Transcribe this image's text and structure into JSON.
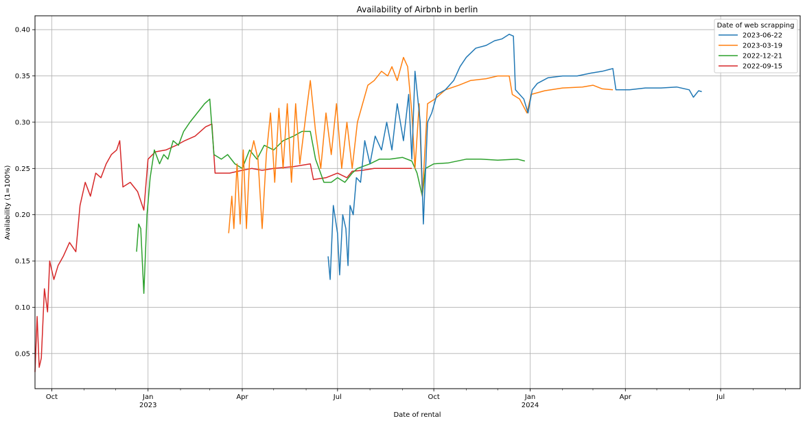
{
  "chart_data": {
    "type": "line",
    "title": "Availability of Airbnb in berlin",
    "xlabel": "Date of rental",
    "ylabel": "Availability (1=100%)",
    "grid": true,
    "legend_position": "top-right",
    "legend_title": "Date of web scrapping",
    "xlim": [
      "2022-09-15",
      "2024-09-15"
    ],
    "ylim": [
      0.012,
      0.415
    ],
    "yticks": [
      0.05,
      0.1,
      0.15,
      0.2,
      0.25,
      0.3,
      0.35,
      0.4
    ],
    "ytick_labels": [
      "0.05",
      "0.10",
      "0.15",
      "0.20",
      "0.25",
      "0.30",
      "0.35",
      "0.40"
    ],
    "xticks": [
      {
        "date": "2022-10-01",
        "label": "Oct",
        "sublabel": ""
      },
      {
        "date": "2023-01-01",
        "label": "Jan",
        "sublabel": "2023"
      },
      {
        "date": "2023-04-01",
        "label": "Apr",
        "sublabel": ""
      },
      {
        "date": "2023-07-01",
        "label": "Jul",
        "sublabel": ""
      },
      {
        "date": "2023-10-01",
        "label": "Oct",
        "sublabel": ""
      },
      {
        "date": "2024-01-01",
        "label": "Jan",
        "sublabel": "2024"
      },
      {
        "date": "2024-04-01",
        "label": "Apr",
        "sublabel": ""
      },
      {
        "date": "2024-07-01",
        "label": "Jul",
        "sublabel": ""
      }
    ],
    "series": [
      {
        "name": "2023-06-22",
        "color": "#1f77b4",
        "points": [
          [
            "2023-06-22",
            0.155
          ],
          [
            "2023-06-24",
            0.13
          ],
          [
            "2023-06-27",
            0.21
          ],
          [
            "2023-07-01",
            0.18
          ],
          [
            "2023-07-03",
            0.135
          ],
          [
            "2023-07-06",
            0.2
          ],
          [
            "2023-07-09",
            0.185
          ],
          [
            "2023-07-11",
            0.145
          ],
          [
            "2023-07-13",
            0.21
          ],
          [
            "2023-07-16",
            0.2
          ],
          [
            "2023-07-19",
            0.24
          ],
          [
            "2023-07-23",
            0.235
          ],
          [
            "2023-07-27",
            0.28
          ],
          [
            "2023-08-01",
            0.255
          ],
          [
            "2023-08-06",
            0.285
          ],
          [
            "2023-08-12",
            0.27
          ],
          [
            "2023-08-17",
            0.3
          ],
          [
            "2023-08-22",
            0.27
          ],
          [
            "2023-08-27",
            0.32
          ],
          [
            "2023-09-02",
            0.28
          ],
          [
            "2023-09-07",
            0.33
          ],
          [
            "2023-09-10",
            0.26
          ],
          [
            "2023-09-13",
            0.355
          ],
          [
            "2023-09-18",
            0.3
          ],
          [
            "2023-09-21",
            0.19
          ],
          [
            "2023-09-25",
            0.3
          ],
          [
            "2023-09-29",
            0.31
          ],
          [
            "2023-10-04",
            0.33
          ],
          [
            "2023-10-12",
            0.335
          ],
          [
            "2023-10-20",
            0.345
          ],
          [
            "2023-10-26",
            0.36
          ],
          [
            "2023-11-01",
            0.37
          ],
          [
            "2023-11-10",
            0.38
          ],
          [
            "2023-11-20",
            0.383
          ],
          [
            "2023-11-28",
            0.388
          ],
          [
            "2023-12-05",
            0.39
          ],
          [
            "2023-12-12",
            0.395
          ],
          [
            "2023-12-16",
            0.393
          ],
          [
            "2023-12-18",
            0.335
          ],
          [
            "2023-12-26",
            0.325
          ],
          [
            "2023-12-30",
            0.31
          ],
          [
            "2024-01-03",
            0.335
          ],
          [
            "2024-01-08",
            0.342
          ],
          [
            "2024-01-18",
            0.348
          ],
          [
            "2024-02-01",
            0.35
          ],
          [
            "2024-02-15",
            0.35
          ],
          [
            "2024-02-28",
            0.353
          ],
          [
            "2024-03-10",
            0.355
          ],
          [
            "2024-03-20",
            0.358
          ],
          [
            "2024-03-23",
            0.335
          ],
          [
            "2024-04-05",
            0.335
          ],
          [
            "2024-04-20",
            0.337
          ],
          [
            "2024-05-05",
            0.337
          ],
          [
            "2024-05-20",
            0.338
          ],
          [
            "2024-06-01",
            0.335
          ],
          [
            "2024-06-05",
            0.327
          ],
          [
            "2024-06-10",
            0.334
          ],
          [
            "2024-06-13",
            0.333
          ]
        ]
      },
      {
        "name": "2023-03-19",
        "color": "#ff7f0e",
        "points": [
          [
            "2023-03-19",
            0.18
          ],
          [
            "2023-03-22",
            0.22
          ],
          [
            "2023-03-24",
            0.185
          ],
          [
            "2023-03-27",
            0.255
          ],
          [
            "2023-03-30",
            0.19
          ],
          [
            "2023-04-02",
            0.27
          ],
          [
            "2023-04-05",
            0.185
          ],
          [
            "2023-04-08",
            0.26
          ],
          [
            "2023-04-12",
            0.28
          ],
          [
            "2023-04-16",
            0.26
          ],
          [
            "2023-04-20",
            0.185
          ],
          [
            "2023-04-24",
            0.265
          ],
          [
            "2023-04-28",
            0.31
          ],
          [
            "2023-05-02",
            0.235
          ],
          [
            "2023-05-06",
            0.315
          ],
          [
            "2023-05-10",
            0.25
          ],
          [
            "2023-05-14",
            0.32
          ],
          [
            "2023-05-18",
            0.235
          ],
          [
            "2023-05-22",
            0.32
          ],
          [
            "2023-05-26",
            0.255
          ],
          [
            "2023-06-01",
            0.31
          ],
          [
            "2023-06-05",
            0.345
          ],
          [
            "2023-06-10",
            0.29
          ],
          [
            "2023-06-15",
            0.25
          ],
          [
            "2023-06-20",
            0.31
          ],
          [
            "2023-06-25",
            0.265
          ],
          [
            "2023-06-30",
            0.32
          ],
          [
            "2023-07-05",
            0.25
          ],
          [
            "2023-07-10",
            0.3
          ],
          [
            "2023-07-15",
            0.25
          ],
          [
            "2023-07-20",
            0.3
          ],
          [
            "2023-07-25",
            0.32
          ],
          [
            "2023-07-30",
            0.34
          ],
          [
            "2023-08-05",
            0.345
          ],
          [
            "2023-08-12",
            0.355
          ],
          [
            "2023-08-18",
            0.35
          ],
          [
            "2023-08-22",
            0.36
          ],
          [
            "2023-08-27",
            0.345
          ],
          [
            "2023-09-02",
            0.37
          ],
          [
            "2023-09-06",
            0.36
          ],
          [
            "2023-09-10",
            0.31
          ],
          [
            "2023-09-13",
            0.25
          ],
          [
            "2023-09-17",
            0.32
          ],
          [
            "2023-09-20",
            0.22
          ],
          [
            "2023-09-25",
            0.32
          ],
          [
            "2023-10-02",
            0.325
          ],
          [
            "2023-10-12",
            0.335
          ],
          [
            "2023-10-25",
            0.34
          ],
          [
            "2023-11-05",
            0.345
          ],
          [
            "2023-11-20",
            0.347
          ],
          [
            "2023-12-01",
            0.35
          ],
          [
            "2023-12-12",
            0.35
          ],
          [
            "2023-12-15",
            0.33
          ],
          [
            "2023-12-22",
            0.325
          ],
          [
            "2023-12-29",
            0.31
          ],
          [
            "2024-01-02",
            0.33
          ],
          [
            "2024-01-15",
            0.334
          ],
          [
            "2024-02-01",
            0.337
          ],
          [
            "2024-02-20",
            0.338
          ],
          [
            "2024-03-01",
            0.34
          ],
          [
            "2024-03-10",
            0.336
          ],
          [
            "2024-03-20",
            0.335
          ]
        ]
      },
      {
        "name": "2022-12-21",
        "color": "#2ca02c",
        "points": [
          [
            "2022-12-21",
            0.16
          ],
          [
            "2022-12-23",
            0.19
          ],
          [
            "2022-12-25",
            0.185
          ],
          [
            "2022-12-28",
            0.115
          ],
          [
            "2022-12-31",
            0.2
          ],
          [
            "2023-01-03",
            0.24
          ],
          [
            "2023-01-07",
            0.27
          ],
          [
            "2023-01-12",
            0.255
          ],
          [
            "2023-01-16",
            0.265
          ],
          [
            "2023-01-20",
            0.26
          ],
          [
            "2023-01-25",
            0.28
          ],
          [
            "2023-01-30",
            0.275
          ],
          [
            "2023-02-04",
            0.29
          ],
          [
            "2023-02-10",
            0.3
          ],
          [
            "2023-02-17",
            0.31
          ],
          [
            "2023-02-24",
            0.32
          ],
          [
            "2023-03-01",
            0.325
          ],
          [
            "2023-03-05",
            0.265
          ],
          [
            "2023-03-12",
            0.26
          ],
          [
            "2023-03-18",
            0.265
          ],
          [
            "2023-03-25",
            0.255
          ],
          [
            "2023-04-01",
            0.25
          ],
          [
            "2023-04-08",
            0.27
          ],
          [
            "2023-04-15",
            0.26
          ],
          [
            "2023-04-22",
            0.275
          ],
          [
            "2023-05-01",
            0.27
          ],
          [
            "2023-05-10",
            0.28
          ],
          [
            "2023-05-20",
            0.285
          ],
          [
            "2023-05-28",
            0.29
          ],
          [
            "2023-06-05",
            0.29
          ],
          [
            "2023-06-10",
            0.26
          ],
          [
            "2023-06-18",
            0.235
          ],
          [
            "2023-06-25",
            0.235
          ],
          [
            "2023-07-01",
            0.24
          ],
          [
            "2023-07-08",
            0.235
          ],
          [
            "2023-07-15",
            0.245
          ],
          [
            "2023-07-20",
            0.25
          ],
          [
            "2023-08-01",
            0.255
          ],
          [
            "2023-08-10",
            0.26
          ],
          [
            "2023-08-20",
            0.26
          ],
          [
            "2023-09-01",
            0.262
          ],
          [
            "2023-09-10",
            0.258
          ],
          [
            "2023-09-15",
            0.245
          ],
          [
            "2023-09-20",
            0.22
          ],
          [
            "2023-09-23",
            0.25
          ],
          [
            "2023-10-01",
            0.255
          ],
          [
            "2023-10-15",
            0.256
          ],
          [
            "2023-11-01",
            0.26
          ],
          [
            "2023-11-15",
            0.26
          ],
          [
            "2023-12-01",
            0.259
          ],
          [
            "2023-12-20",
            0.26
          ],
          [
            "2023-12-27",
            0.258
          ]
        ]
      },
      {
        "name": "2022-09-15",
        "color": "#d62728",
        "points": [
          [
            "2022-09-15",
            0.03
          ],
          [
            "2022-09-17",
            0.09
          ],
          [
            "2022-09-19",
            0.035
          ],
          [
            "2022-09-21",
            0.045
          ],
          [
            "2022-09-24",
            0.12
          ],
          [
            "2022-09-27",
            0.095
          ],
          [
            "2022-09-29",
            0.15
          ],
          [
            "2022-10-03",
            0.13
          ],
          [
            "2022-10-07",
            0.145
          ],
          [
            "2022-10-12",
            0.155
          ],
          [
            "2022-10-18",
            0.17
          ],
          [
            "2022-10-24",
            0.16
          ],
          [
            "2022-10-28",
            0.21
          ],
          [
            "2022-11-02",
            0.235
          ],
          [
            "2022-11-07",
            0.22
          ],
          [
            "2022-11-12",
            0.245
          ],
          [
            "2022-11-17",
            0.24
          ],
          [
            "2022-11-22",
            0.255
          ],
          [
            "2022-11-27",
            0.265
          ],
          [
            "2022-12-02",
            0.27
          ],
          [
            "2022-12-05",
            0.28
          ],
          [
            "2022-12-08",
            0.23
          ],
          [
            "2022-12-15",
            0.235
          ],
          [
            "2022-12-22",
            0.225
          ],
          [
            "2022-12-28",
            0.205
          ],
          [
            "2023-01-01",
            0.26
          ],
          [
            "2023-01-08",
            0.268
          ],
          [
            "2023-01-18",
            0.27
          ],
          [
            "2023-01-28",
            0.275
          ],
          [
            "2023-02-05",
            0.28
          ],
          [
            "2023-02-15",
            0.285
          ],
          [
            "2023-02-25",
            0.295
          ],
          [
            "2023-03-03",
            0.298
          ],
          [
            "2023-03-06",
            0.245
          ],
          [
            "2023-03-20",
            0.245
          ],
          [
            "2023-04-01",
            0.248
          ],
          [
            "2023-04-10",
            0.25
          ],
          [
            "2023-04-20",
            0.248
          ],
          [
            "2023-05-01",
            0.25
          ],
          [
            "2023-05-20",
            0.252
          ],
          [
            "2023-06-05",
            0.255
          ],
          [
            "2023-06-08",
            0.238
          ],
          [
            "2023-06-20",
            0.24
          ],
          [
            "2023-07-01",
            0.245
          ],
          [
            "2023-07-10",
            0.24
          ],
          [
            "2023-07-15",
            0.247
          ],
          [
            "2023-07-25",
            0.248
          ],
          [
            "2023-08-05",
            0.25
          ],
          [
            "2023-08-20",
            0.25
          ],
          [
            "2023-09-01",
            0.25
          ],
          [
            "2023-09-10",
            0.25
          ]
        ]
      }
    ]
  }
}
